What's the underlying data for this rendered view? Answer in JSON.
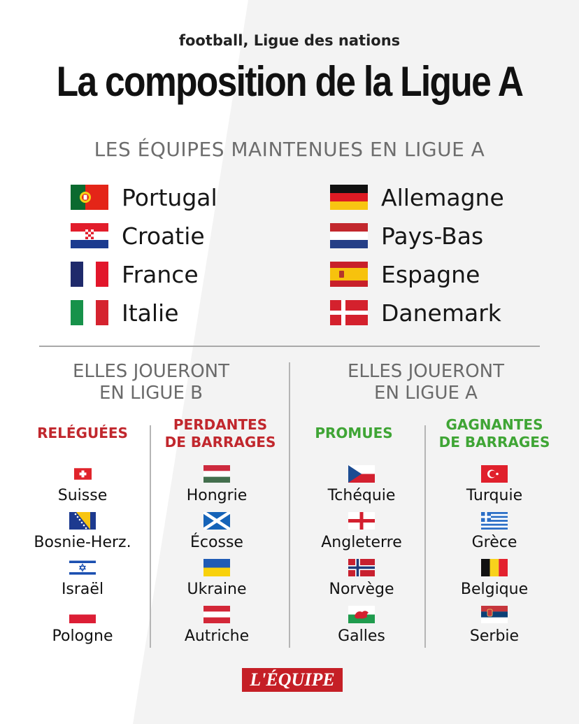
{
  "header": {
    "kicker": "football, Ligue des nations",
    "title": "La composition de la Ligue A"
  },
  "maintained": {
    "heading": "LES ÉQUIPES MAINTENUES EN LIGUE A",
    "left": [
      "Portugal",
      "Croatie",
      "France",
      "Italie"
    ],
    "right": [
      "Allemagne",
      "Pays-Bas",
      "Espagne",
      "Danemark"
    ]
  },
  "ligue_b": {
    "heading_line1": "ELLES JOUERONT",
    "heading_line2": "EN LIGUE B",
    "relegated": {
      "label": "RELÉGUÉES",
      "teams": [
        "Suisse",
        "Bosnie-Herz.",
        "Israël",
        "Pologne"
      ]
    },
    "playoff_losers": {
      "label_line1": "PERDANTES",
      "label_line2": "DE BARRAGES",
      "teams": [
        "Hongrie",
        "Écosse",
        "Ukraine",
        "Autriche"
      ]
    }
  },
  "ligue_a": {
    "heading_line1": "ELLES JOUERONT",
    "heading_line2": "EN LIGUE A",
    "promoted": {
      "label": "PROMUES",
      "teams": [
        "Tchéquie",
        "Angleterre",
        "Norvège",
        "Galles"
      ]
    },
    "playoff_winners": {
      "label_line1": "GAGNANTES",
      "label_line2": "DE BARRAGES",
      "teams": [
        "Turquie",
        "Grèce",
        "Belgique",
        "Serbie"
      ]
    }
  },
  "logo": "L'ÉQUIPE",
  "colors": {
    "relegated_red": "#c1272d",
    "promoted_green": "#3fa535",
    "logo_red": "#c51f26"
  }
}
